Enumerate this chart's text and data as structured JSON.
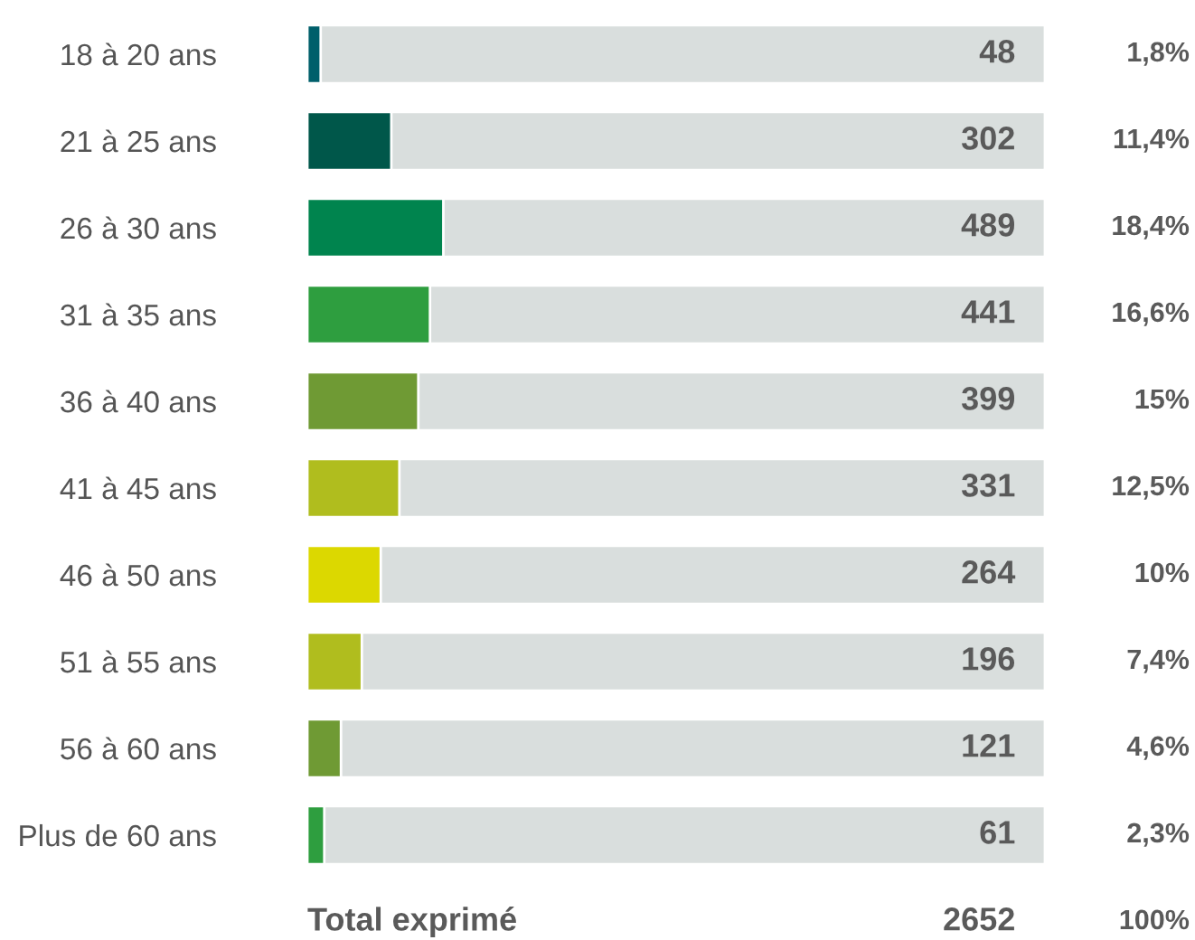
{
  "chart_data": {
    "type": "bar",
    "orientation": "horizontal",
    "data_labels": true,
    "categories": [
      "18 à 20 ans",
      "21 à 25 ans",
      "26 à 30 ans",
      "31 à 35 ans",
      "36 à 40 ans",
      "41 à 45 ans",
      "46 à 50 ans",
      "51 à 55 ans",
      "56 à 60 ans",
      "Plus de 60 ans"
    ],
    "values": [
      48,
      302,
      489,
      441,
      399,
      331,
      264,
      196,
      121,
      61
    ],
    "colors": [
      "#005f6b",
      "#00574a",
      "#00844e",
      "#2e9e3f",
      "#6f9a34",
      "#b0bd1e",
      "#dcd800",
      "#b0bd1e",
      "#6f9a34",
      "#2e9e3f"
    ],
    "xlim": [
      0,
      2652
    ],
    "annotations": [
      "1,8%",
      "11,4%",
      "18,4%",
      "16,6%",
      "15%",
      "12,5%",
      "10%",
      "7,4%",
      "4,6%",
      "2,3%",
      "Total exprimé",
      "2652",
      "100%"
    ]
  }
}
